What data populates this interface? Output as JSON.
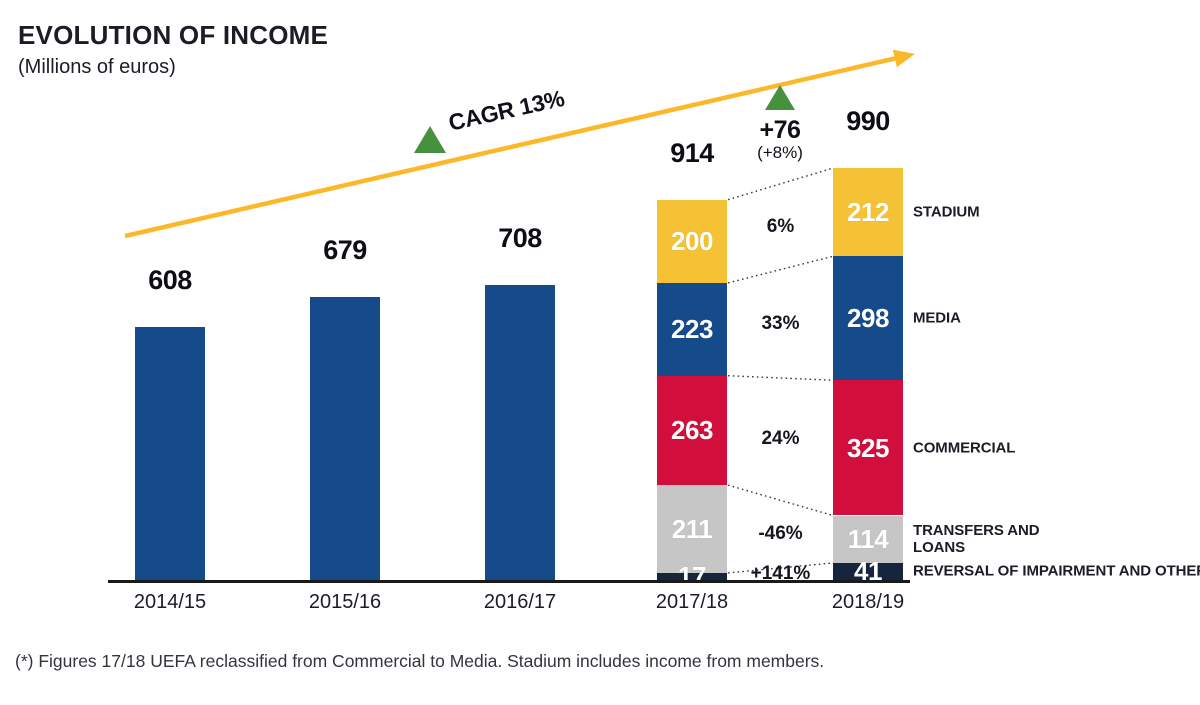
{
  "header": {
    "title": "EVOLUTION OF INCOME",
    "subtitle": "(Millions of euros)"
  },
  "annotations": {
    "cagr": "CAGR 13%",
    "delta": "+76",
    "delta_pct": "(+8%)"
  },
  "footnote": "(*) Figures 17/18 UEFA reclassified from Commercial to Media. Stadium includes income from members.",
  "colors": {
    "bar_blue": "#154A8B",
    "stadium_yellow": "#F5C235",
    "commercial_red": "#D20F3C",
    "transfers_gray": "#C6C6C6",
    "reversal_navy": "#16243E",
    "arrow_yellow": "#FBB829",
    "triangle_green": "#46913D",
    "axis_black": "#1A1A1A",
    "text_dark": "#1C1C26"
  },
  "chart_data": {
    "type": "bar",
    "stacked_last_two": true,
    "title": "EVOLUTION OF INCOME",
    "subtitle": "(Millions of euros)",
    "unit": "millions of euros",
    "categories": [
      "2014/15",
      "2015/16",
      "2016/17",
      "2017/18",
      "2018/19"
    ],
    "totals": [
      608,
      679,
      708,
      914,
      990
    ],
    "plain_bar_values": [
      608,
      679,
      708
    ],
    "stacked_years": [
      "2017/18",
      "2018/19"
    ],
    "segments": [
      {
        "name": "STADIUM",
        "label_lines": [
          "STADIUM"
        ],
        "color_key": "stadium_yellow",
        "values": [
          200,
          212
        ],
        "change": "6%"
      },
      {
        "name": "MEDIA",
        "label_lines": [
          "MEDIA"
        ],
        "color_key": "bar_blue",
        "values": [
          223,
          298
        ],
        "change": "33%"
      },
      {
        "name": "COMMERCIAL",
        "label_lines": [
          "COMMERCIAL"
        ],
        "color_key": "commercial_red",
        "values": [
          263,
          325
        ],
        "change": "24%"
      },
      {
        "name": "TRANSFERS AND LOANS",
        "label_lines": [
          "TRANSFERS AND",
          "LOANS"
        ],
        "color_key": "transfers_gray",
        "values": [
          211,
          114
        ],
        "change": "-46%"
      },
      {
        "name": "REVERSAL OF IMPAIRMENT AND OTHERS",
        "label_lines": [
          "REVERSAL OF IMPAIRMENT AND OTHERS"
        ],
        "color_key": "reversal_navy",
        "values": [
          17,
          41
        ],
        "change": "+141%"
      }
    ],
    "cagr_annotation": "CAGR 13%",
    "delta_annotation": {
      "value": "+76",
      "pct": "(+8%)"
    },
    "ylim": [
      0,
      1000
    ],
    "grid": false,
    "legend_position": "right"
  }
}
